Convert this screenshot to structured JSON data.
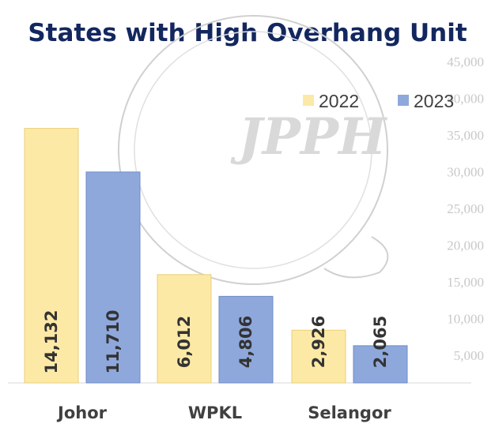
{
  "chart_data": {
    "type": "bar",
    "title": "States with High Overhang Unit",
    "categories": [
      "Johor",
      "WPKL",
      "Selangor"
    ],
    "series": [
      {
        "name": "2022",
        "color": "#fde9a6",
        "values": [
          14132,
          6012,
          2926
        ]
      },
      {
        "name": "2023",
        "color": "#8ea8dc",
        "values": [
          11710,
          4806,
          2065
        ]
      }
    ],
    "data_labels": [
      [
        "14,132",
        "11,710"
      ],
      [
        "6,012",
        "4,806"
      ],
      [
        "2,926",
        "2,065"
      ]
    ],
    "ytick_labels": [
      "5,000",
      "10,000",
      "15,000",
      "20,000",
      "25,000",
      "30,000",
      "35,000",
      "40,000",
      "45,000"
    ],
    "ylim": [
      0,
      16000
    ],
    "grid": false,
    "legend_position": "top-right"
  },
  "watermark": {
    "text": "JPPH"
  }
}
